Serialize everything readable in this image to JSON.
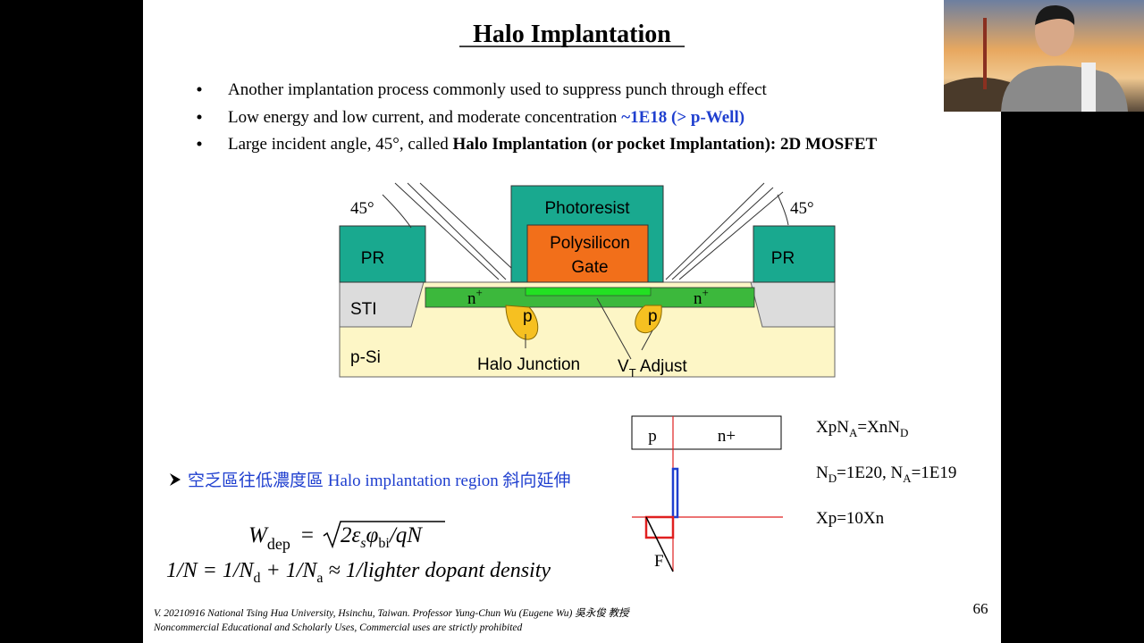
{
  "slide": {
    "title": "Halo Implantation",
    "bullets": [
      [
        "Another implantation process commonly used to suppress punch through effect"
      ],
      [
        "Low energy and low current, and moderate concentration ",
        "~1E18 (> p-Well)"
      ],
      [
        "Large incident angle, 45°, called ",
        "Halo Implantation (or pocket Implantation): 2D MOSFET"
      ]
    ],
    "diagram": {
      "angle_left": "45°",
      "angle_right": "45°",
      "photoresist": "Photoresist",
      "gate": [
        "Polysilicon",
        "Gate"
      ],
      "pr_left": "PR",
      "pr_right": "PR",
      "sti": "STI",
      "n_left": [
        "n",
        "+"
      ],
      "n_right": [
        "n",
        "+"
      ],
      "p_left": "p",
      "p_right": "p",
      "substrate": "p-Si",
      "halo_junction": "Halo Junction",
      "vt_adjust": [
        "V",
        "T",
        " Adjust"
      ]
    },
    "note": "空乏區往低濃度區 Halo implantation  region 斜向延伸",
    "formula_w": [
      "W",
      "dep",
      "=",
      "2ε",
      "s",
      "φ",
      "bi",
      "/",
      "qN"
    ],
    "formula_n": [
      "1/N = 1/N",
      "d",
      " + 1/N",
      "a",
      " ≈ 1/",
      "lighter dopant density"
    ],
    "junction": {
      "p": "p",
      "n": "n+",
      "field": "F"
    },
    "equations": [
      [
        "XpN",
        "A",
        "=XnN",
        "D"
      ],
      [
        "N",
        "D",
        "=1E20, N",
        "A",
        "=1E19"
      ],
      [
        "Xp=10Xn"
      ]
    ],
    "footer": [
      "V. 20210916 National Tsing Hua University, Hsinchu, Taiwan. Professor Yung-Chun Wu (Eugene Wu) 吳永俊 教授",
      "Noncommercial Educational and Scholarly Uses, Commercial uses are strictly prohibited"
    ],
    "page_number": "66"
  }
}
